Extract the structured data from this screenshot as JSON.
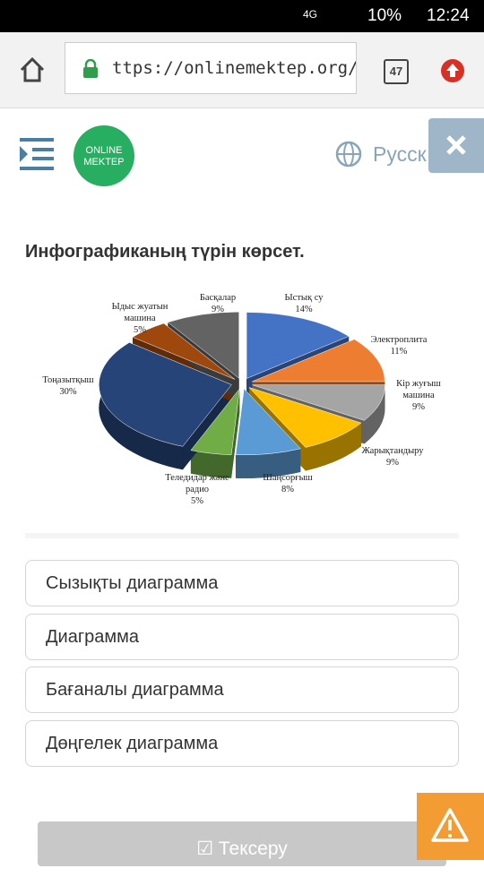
{
  "status_bar": {
    "network": "4G",
    "battery": "10%",
    "time": "12:24"
  },
  "browser": {
    "url": "ttps://onlinemektep.org/s",
    "tabs": "47"
  },
  "header": {
    "logo_top": "ONLINE",
    "logo_bottom": "MEKTEP",
    "language": "Русск"
  },
  "question": "Инфографиканың түрін көрсет.",
  "chart_data": {
    "type": "pie",
    "categories": [
      "Ыстық су",
      "Электроплита",
      "Кір жуғыш машина",
      "Жарықтандыру",
      "Шаңсорғыш",
      "Теледидар және радио",
      "Тоңазытқыш",
      "Ыдыс жуатын машина",
      "Басқалар"
    ],
    "values": [
      14,
      11,
      9,
      9,
      8,
      5,
      30,
      5,
      9
    ],
    "value_labels": [
      "14%",
      "11%",
      "9%",
      "9%",
      "8%",
      "5%",
      "30%",
      "5%",
      "9%"
    ],
    "colors": [
      "#4472c4",
      "#ed7d31",
      "#a5a5a5",
      "#ffc000",
      "#5b9bd5",
      "#70ad47",
      "#264478",
      "#9e480e",
      "#636363"
    ]
  },
  "options": [
    "Сызықты диаграмма",
    "Диаграмма",
    "Бағаналы диаграмма",
    "Дөңгелек диаграмма"
  ],
  "submit": "Тексеру"
}
